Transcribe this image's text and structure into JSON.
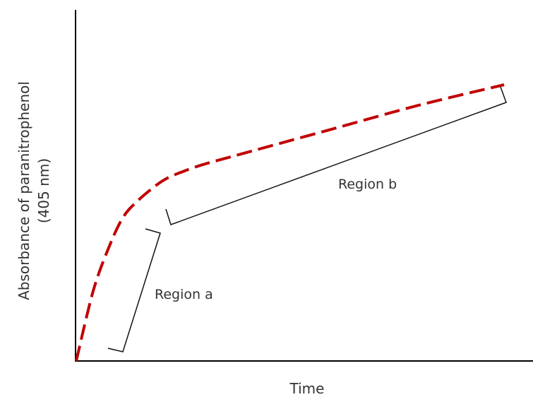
{
  "chart_data": {
    "type": "line",
    "title": "",
    "xlabel": "Time",
    "ylabel_line1": "Absorbance of paranitrophenol",
    "ylabel_line2": "(405 nm)",
    "x_ticks": false,
    "y_ticks": false,
    "grid": false,
    "xlim": [
      0,
      100
    ],
    "ylim": [
      0,
      100
    ],
    "series": [
      {
        "color": "#c00000",
        "style": "dashed",
        "x": [
          0,
          4,
          8,
          11,
          14,
          18,
          21,
          25,
          30,
          40,
          60,
          80,
          100
        ],
        "y": [
          0,
          24,
          40,
          49,
          54,
          59,
          62,
          64.5,
          67,
          71,
          79,
          87,
          94
        ]
      }
    ],
    "annotations": [
      {
        "label": "Region a",
        "x_range": [
          8,
          20
        ]
      },
      {
        "label": "Region b",
        "x_range": [
          22,
          100
        ]
      }
    ]
  }
}
